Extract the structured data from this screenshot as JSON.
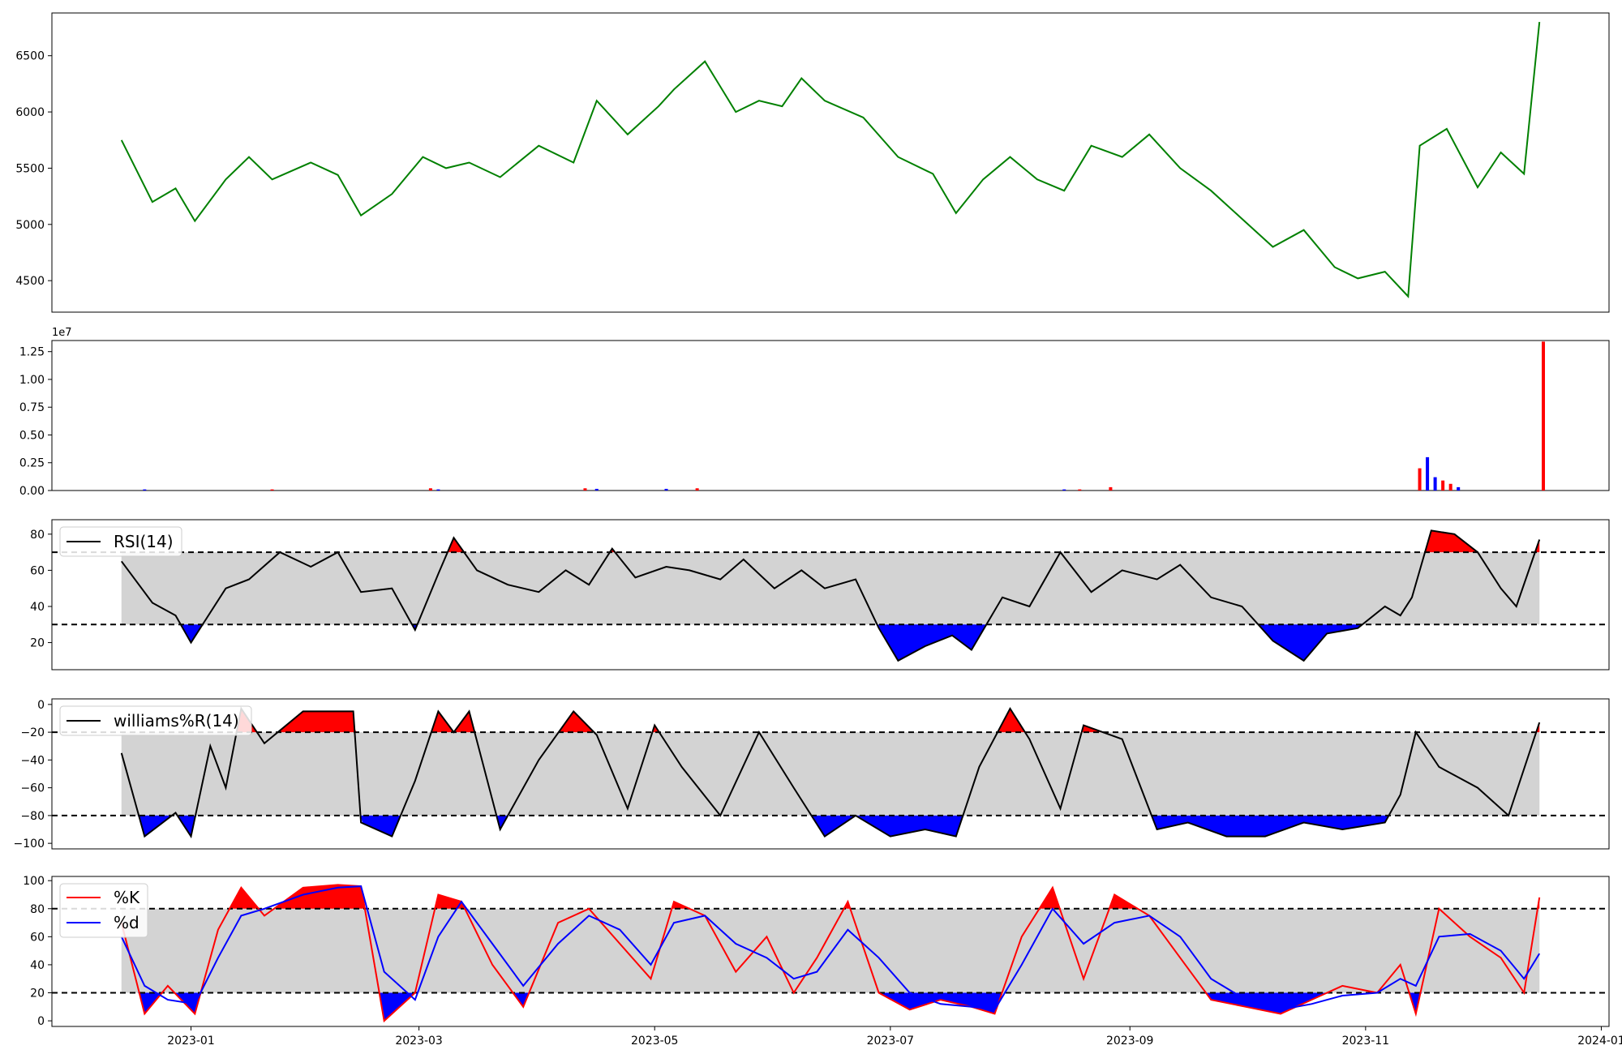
{
  "chart_data": [
    {
      "type": "line",
      "panel": "price",
      "ylim": [
        4220,
        6880
      ],
      "yticks": [
        4500,
        5000,
        5500,
        6000,
        6500
      ],
      "color": "#008000",
      "series": [
        {
          "x": [
            "2022-12-14",
            "2022-12-22",
            "2022-12-28",
            "2023-01-02",
            "2023-01-10",
            "2023-01-16",
            "2023-01-22",
            "2023-02-01",
            "2023-02-08",
            "2023-02-14",
            "2023-02-22",
            "2023-03-02",
            "2023-03-08",
            "2023-03-14",
            "2023-03-22",
            "2023-04-01",
            "2023-04-10",
            "2023-04-16",
            "2023-04-24",
            "2023-05-02",
            "2023-05-06",
            "2023-05-14",
            "2023-05-22",
            "2023-05-28",
            "2023-06-03",
            "2023-06-08",
            "2023-06-14",
            "2023-06-24",
            "2023-07-03",
            "2023-07-12",
            "2023-07-18",
            "2023-07-25",
            "2023-08-01",
            "2023-08-08",
            "2023-08-15",
            "2023-08-22",
            "2023-08-30",
            "2023-09-06",
            "2023-09-14",
            "2023-09-22",
            "2023-09-30",
            "2023-10-08",
            "2023-10-16",
            "2023-10-24",
            "2023-10-30",
            "2023-11-06",
            "2023-11-12",
            "2023-11-15",
            "2023-11-22",
            "2023-11-30",
            "2023-12-06",
            "2023-12-12",
            "2023-12-16"
          ],
          "values": [
            5750,
            5200,
            5320,
            5030,
            5400,
            5600,
            5400,
            5550,
            5440,
            5080,
            5270,
            5600,
            5500,
            5550,
            5420,
            5700,
            5550,
            6100,
            5800,
            6050,
            6200,
            6450,
            6000,
            6100,
            6050,
            6300,
            6100,
            5950,
            5600,
            5450,
            5100,
            5400,
            5600,
            5400,
            5300,
            5700,
            5600,
            5800,
            5500,
            5300,
            5050,
            4800,
            4950,
            4620,
            4520,
            4580,
            4360,
            5700,
            5850,
            5330,
            5640,
            5450,
            6800
          ]
        }
      ]
    },
    {
      "type": "bar",
      "panel": "volume",
      "multiplier_label": "1e7",
      "ylim": [
        0,
        1.35
      ],
      "yticks": [
        "0.00",
        "0.25",
        "0.50",
        "0.75",
        "1.00",
        "1.25"
      ],
      "series": [
        {
          "x": [
            "2022-12-20",
            "2023-01-22",
            "2023-03-04",
            "2023-03-06",
            "2023-04-13",
            "2023-04-16",
            "2023-05-04",
            "2023-05-12",
            "2023-08-15",
            "2023-08-19",
            "2023-08-27",
            "2023-11-15",
            "2023-11-17",
            "2023-11-19",
            "2023-11-21",
            "2023-11-23",
            "2023-11-25",
            "2023-12-17"
          ],
          "values": [
            0.01,
            0.01,
            0.02,
            0.01,
            0.02,
            0.015,
            0.015,
            0.02,
            0.01,
            0.01,
            0.03,
            0.2,
            0.3,
            0.12,
            0.09,
            0.06,
            0.03,
            1.34
          ],
          "colors": [
            "#0000ff",
            "#ff0000",
            "#ff0000",
            "#0000ff",
            "#ff0000",
            "#0000ff",
            "#0000ff",
            "#ff0000",
            "#0000ff",
            "#ff0000",
            "#ff0000",
            "#ff0000",
            "#0000ff",
            "#0000ff",
            "#ff0000",
            "#ff0000",
            "#0000ff",
            "#ff0000"
          ]
        }
      ]
    },
    {
      "type": "line",
      "panel": "rsi",
      "ylim": [
        5,
        88
      ],
      "yticks": [
        20,
        40,
        60,
        80
      ],
      "bands": [
        30,
        70
      ],
      "series": [
        {
          "name": "RSI(14)",
          "x": [
            "2022-12-14",
            "2022-12-22",
            "2022-12-28",
            "2023-01-01",
            "2023-01-10",
            "2023-01-16",
            "2023-01-24",
            "2023-02-01",
            "2023-02-08",
            "2023-02-14",
            "2023-02-22",
            "2023-02-28",
            "2023-03-06",
            "2023-03-10",
            "2023-03-16",
            "2023-03-24",
            "2023-04-01",
            "2023-04-08",
            "2023-04-14",
            "2023-04-20",
            "2023-04-26",
            "2023-05-04",
            "2023-05-10",
            "2023-05-18",
            "2023-05-24",
            "2023-06-01",
            "2023-06-08",
            "2023-06-14",
            "2023-06-22",
            "2023-06-28",
            "2023-07-03",
            "2023-07-10",
            "2023-07-17",
            "2023-07-22",
            "2023-07-30",
            "2023-08-06",
            "2023-08-14",
            "2023-08-22",
            "2023-08-30",
            "2023-09-08",
            "2023-09-14",
            "2023-09-22",
            "2023-09-30",
            "2023-10-08",
            "2023-10-16",
            "2023-10-22",
            "2023-10-30",
            "2023-11-06",
            "2023-11-10",
            "2023-11-13",
            "2023-11-18",
            "2023-11-24",
            "2023-11-30",
            "2023-12-06",
            "2023-12-10",
            "2023-12-16"
          ],
          "values": [
            65,
            42,
            35,
            20,
            50,
            55,
            70,
            62,
            70,
            48,
            50,
            27,
            58,
            78,
            60,
            52,
            48,
            60,
            52,
            72,
            56,
            62,
            60,
            55,
            66,
            50,
            60,
            50,
            55,
            28,
            10,
            18,
            24,
            16,
            45,
            40,
            70,
            48,
            60,
            55,
            63,
            45,
            40,
            21,
            10,
            25,
            28,
            40,
            35,
            45,
            82,
            80,
            70,
            50,
            40,
            77
          ]
        }
      ]
    },
    {
      "type": "line",
      "panel": "williams",
      "ylim": [
        -104,
        4
      ],
      "yticks": [
        0,
        -20,
        -40,
        -60,
        -80,
        -100
      ],
      "bands": [
        -80,
        -20
      ],
      "series": [
        {
          "name": "williams%R(14)",
          "x": [
            "2022-12-14",
            "2022-12-20",
            "2022-12-28",
            "2023-01-01",
            "2023-01-06",
            "2023-01-10",
            "2023-01-14",
            "2023-01-20",
            "2023-01-30",
            "2023-02-05",
            "2023-02-12",
            "2023-02-14",
            "2023-02-22",
            "2023-02-28",
            "2023-03-06",
            "2023-03-10",
            "2023-03-14",
            "2023-03-22",
            "2023-04-01",
            "2023-04-10",
            "2023-04-16",
            "2023-04-24",
            "2023-05-01",
            "2023-05-08",
            "2023-05-18",
            "2023-05-28",
            "2023-06-06",
            "2023-06-14",
            "2023-06-22",
            "2023-07-01",
            "2023-07-10",
            "2023-07-18",
            "2023-07-24",
            "2023-08-01",
            "2023-08-06",
            "2023-08-14",
            "2023-08-20",
            "2023-08-30",
            "2023-09-08",
            "2023-09-16",
            "2023-09-26",
            "2023-10-06",
            "2023-10-16",
            "2023-10-26",
            "2023-11-06",
            "2023-11-10",
            "2023-11-14",
            "2023-11-20",
            "2023-11-30",
            "2023-12-08",
            "2023-12-16"
          ],
          "values": [
            -35,
            -95,
            -78,
            -95,
            -30,
            -60,
            -3,
            -28,
            -5,
            -5,
            -5,
            -85,
            -95,
            -55,
            -5,
            -20,
            -5,
            -90,
            -40,
            -5,
            -22,
            -75,
            -15,
            -45,
            -80,
            -20,
            -60,
            -95,
            -80,
            -95,
            -90,
            -95,
            -45,
            -3,
            -25,
            -75,
            -15,
            -25,
            -90,
            -85,
            -95,
            -95,
            -85,
            -90,
            -85,
            -65,
            -20,
            -45,
            -60,
            -80,
            -13
          ]
        }
      ]
    },
    {
      "type": "line",
      "panel": "stochastic",
      "ylim": [
        -4,
        103
      ],
      "yticks": [
        0,
        20,
        40,
        60,
        80,
        100
      ],
      "xlim": [
        "2022-11-26",
        "2024-01-03"
      ],
      "xticks": [
        "2023-01",
        "2023-03",
        "2023-05",
        "2023-07",
        "2023-09",
        "2023-11",
        "2024-01"
      ],
      "bands": [
        20,
        80
      ],
      "series": [
        {
          "name": "%K",
          "color": "#ff0000",
          "x": [
            "2022-12-14",
            "2022-12-20",
            "2022-12-26",
            "2023-01-02",
            "2023-01-08",
            "2023-01-14",
            "2023-01-20",
            "2023-01-30",
            "2023-02-08",
            "2023-02-14",
            "2023-02-20",
            "2023-02-28",
            "2023-03-06",
            "2023-03-12",
            "2023-03-20",
            "2023-03-28",
            "2023-04-06",
            "2023-04-14",
            "2023-04-22",
            "2023-04-30",
            "2023-05-06",
            "2023-05-14",
            "2023-05-22",
            "2023-05-30",
            "2023-06-06",
            "2023-06-12",
            "2023-06-20",
            "2023-06-28",
            "2023-07-06",
            "2023-07-14",
            "2023-07-22",
            "2023-07-28",
            "2023-08-04",
            "2023-08-12",
            "2023-08-20",
            "2023-08-28",
            "2023-09-06",
            "2023-09-14",
            "2023-09-22",
            "2023-10-01",
            "2023-10-10",
            "2023-10-18",
            "2023-10-26",
            "2023-11-04",
            "2023-11-10",
            "2023-11-14",
            "2023-11-20",
            "2023-11-28",
            "2023-12-06",
            "2023-12-12",
            "2023-12-16"
          ],
          "values": [
            70,
            5,
            25,
            5,
            65,
            95,
            75,
            95,
            97,
            96,
            0,
            20,
            90,
            85,
            40,
            10,
            70,
            80,
            55,
            30,
            85,
            75,
            35,
            60,
            20,
            45,
            85,
            20,
            8,
            15,
            10,
            5,
            60,
            95,
            30,
            90,
            75,
            45,
            15,
            10,
            5,
            15,
            25,
            20,
            40,
            5,
            80,
            60,
            45,
            20,
            88
          ]
        },
        {
          "name": "%d",
          "color": "#0000ff",
          "x": [
            "2022-12-14",
            "2022-12-20",
            "2022-12-26",
            "2023-01-02",
            "2023-01-08",
            "2023-01-14",
            "2023-01-20",
            "2023-01-30",
            "2023-02-08",
            "2023-02-14",
            "2023-02-20",
            "2023-02-28",
            "2023-03-06",
            "2023-03-12",
            "2023-03-20",
            "2023-03-28",
            "2023-04-06",
            "2023-04-14",
            "2023-04-22",
            "2023-04-30",
            "2023-05-06",
            "2023-05-14",
            "2023-05-22",
            "2023-05-30",
            "2023-06-06",
            "2023-06-12",
            "2023-06-20",
            "2023-06-28",
            "2023-07-06",
            "2023-07-14",
            "2023-07-22",
            "2023-07-28",
            "2023-08-04",
            "2023-08-12",
            "2023-08-20",
            "2023-08-28",
            "2023-09-06",
            "2023-09-14",
            "2023-09-22",
            "2023-10-01",
            "2023-10-10",
            "2023-10-18",
            "2023-10-26",
            "2023-11-04",
            "2023-11-10",
            "2023-11-14",
            "2023-11-20",
            "2023-11-28",
            "2023-12-06",
            "2023-12-12",
            "2023-12-16"
          ],
          "values": [
            60,
            25,
            15,
            12,
            45,
            75,
            80,
            90,
            95,
            96,
            35,
            15,
            60,
            85,
            55,
            25,
            55,
            75,
            65,
            40,
            70,
            75,
            55,
            45,
            30,
            35,
            65,
            45,
            20,
            12,
            10,
            8,
            40,
            80,
            55,
            70,
            75,
            60,
            30,
            15,
            8,
            12,
            18,
            20,
            30,
            25,
            60,
            62,
            50,
            30,
            48
          ]
        }
      ]
    }
  ]
}
